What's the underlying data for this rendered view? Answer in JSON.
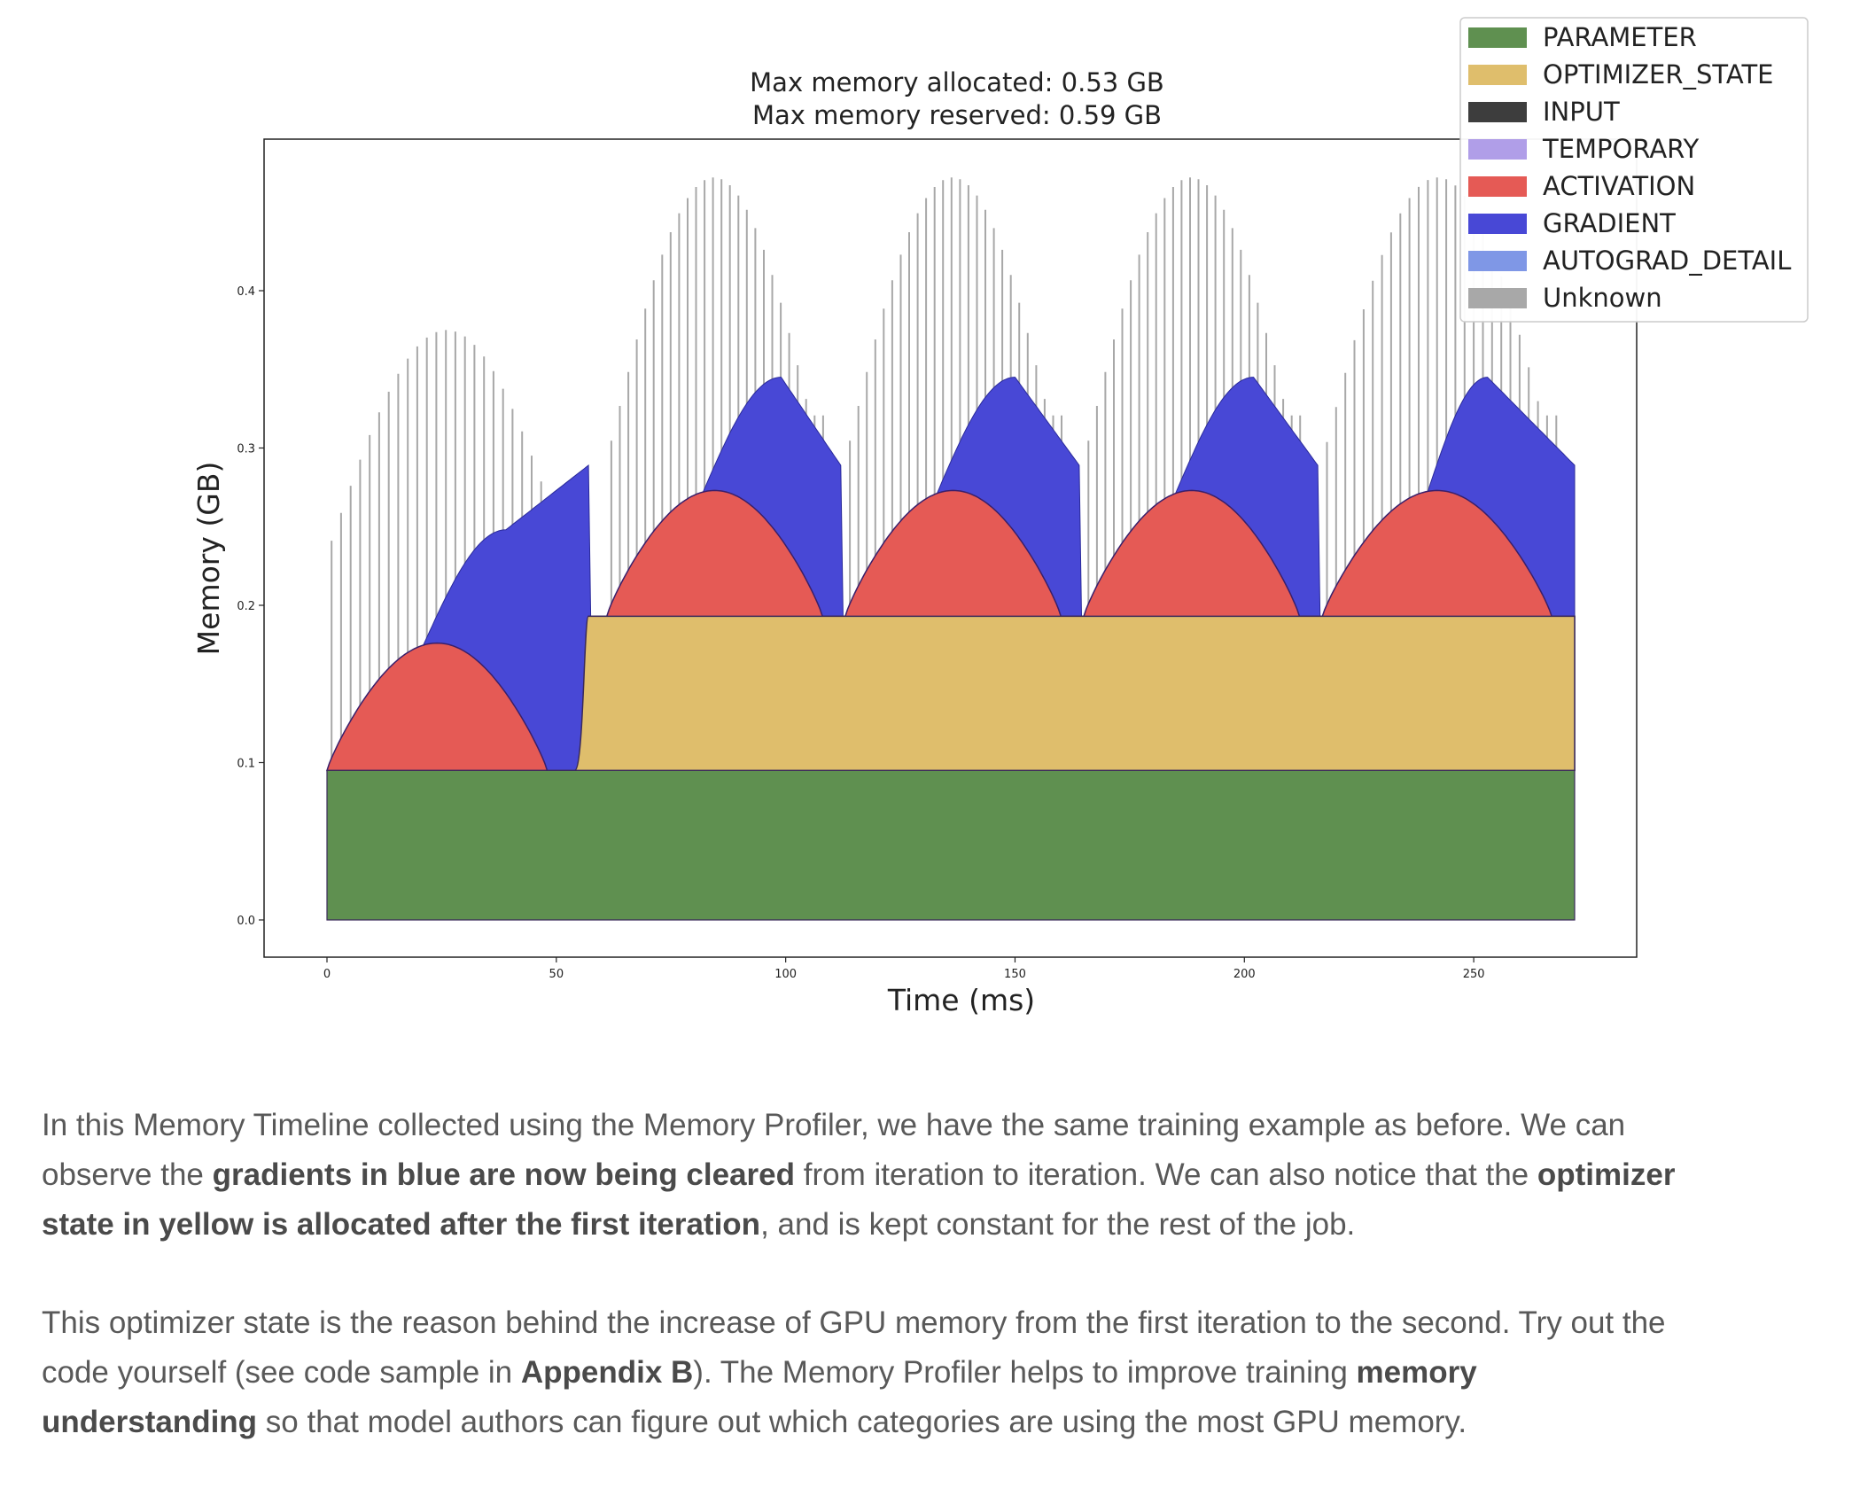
{
  "chart_data": {
    "type": "area",
    "title": "Max memory allocated: 0.53 GB",
    "subtitle": "Max memory reserved: 0.59 GB",
    "xlabel": "Time (ms)",
    "ylabel": "Memory (GB)",
    "xlim": [
      -14,
      285
    ],
    "ylim": [
      -0.023,
      0.497
    ],
    "x_ticks": [
      "0",
      "50",
      "100",
      "150",
      "200",
      "250"
    ],
    "y_ticks": [
      "0.0",
      "0.1",
      "0.2",
      "0.3",
      "0.4"
    ],
    "legend": [
      "PARAMETER",
      "OPTIMIZER_STATE",
      "INPUT",
      "TEMPORARY",
      "ACTIVATION",
      "GRADIENT",
      "AUTOGRAD_DETAIL",
      "Unknown"
    ],
    "colors": {
      "PARAMETER": "#5f9050",
      "OPTIMIZER_STATE": "#dfbe6c",
      "INPUT": "#3d3d3d",
      "TEMPORARY": "#b09ee8",
      "ACTIVATION": "#e55a55",
      "GRADIENT": "#4848d6",
      "AUTOGRAD_DETAIL": "#7f97e6",
      "Unknown": "#a8a8a8"
    },
    "x_range_ms": [
      0,
      272
    ],
    "parameter_gb": 0.095,
    "optimizer_state_gb": 0.098,
    "optimizer_state_from_ms": 57,
    "iterations": [
      {
        "start": 0,
        "activation_peak_ms": 25,
        "activation_peak_gb": 0.176,
        "activation_end_ms": 48,
        "gradient_peak_ms": 39,
        "gradient_peak_gb": 0.248,
        "end_ms": 57,
        "end_gb": 0.289,
        "unknown_peak_gb": 0.375
      },
      {
        "start": 61,
        "activation_peak_ms": 86,
        "activation_peak_gb": 0.273,
        "activation_end_ms": 108,
        "gradient_peak_ms": 99,
        "gradient_peak_gb": 0.345,
        "end_ms": 112,
        "end_gb": 0.289,
        "unknown_peak_gb": 0.472
      },
      {
        "start": 113,
        "activation_peak_ms": 137,
        "activation_peak_gb": 0.273,
        "activation_end_ms": 160,
        "gradient_peak_ms": 150,
        "gradient_peak_gb": 0.345,
        "end_ms": 164,
        "end_gb": 0.289,
        "unknown_peak_gb": 0.472
      },
      {
        "start": 165,
        "activation_peak_ms": 189,
        "activation_peak_gb": 0.273,
        "activation_end_ms": 212,
        "gradient_peak_ms": 202,
        "gradient_peak_gb": 0.345,
        "end_ms": 216,
        "end_gb": 0.289,
        "unknown_peak_gb": 0.472
      },
      {
        "start": 217,
        "activation_peak_ms": 244,
        "activation_peak_gb": 0.273,
        "activation_end_ms": 267,
        "gradient_peak_ms": 253,
        "gradient_peak_gb": 0.345,
        "end_ms": 272,
        "end_gb": 0.289,
        "unknown_peak_gb": 0.472
      }
    ]
  },
  "article": {
    "p1": {
      "t1": "In this Memory Timeline collected using the Memory Profiler, we have the same training example as before. We can observe the ",
      "b1": "gradients in blue are now being cleared",
      "t2": " from iteration to iteration. We can also notice that the ",
      "b2": "optimizer state in yellow is allocated after the first iteration",
      "t3": ", and is kept constant for the rest of the job."
    },
    "p2": {
      "t1": "This optimizer state is the reason behind the increase of GPU memory from the first iteration to the second. Try out the code yourself (see code sample in ",
      "b1": "Appendix B",
      "t2": "). The Memory Profiler helps to improve training ",
      "b2": "memory understanding",
      "t3": " so that model authors can figure out which categories are using the most GPU memory."
    }
  }
}
